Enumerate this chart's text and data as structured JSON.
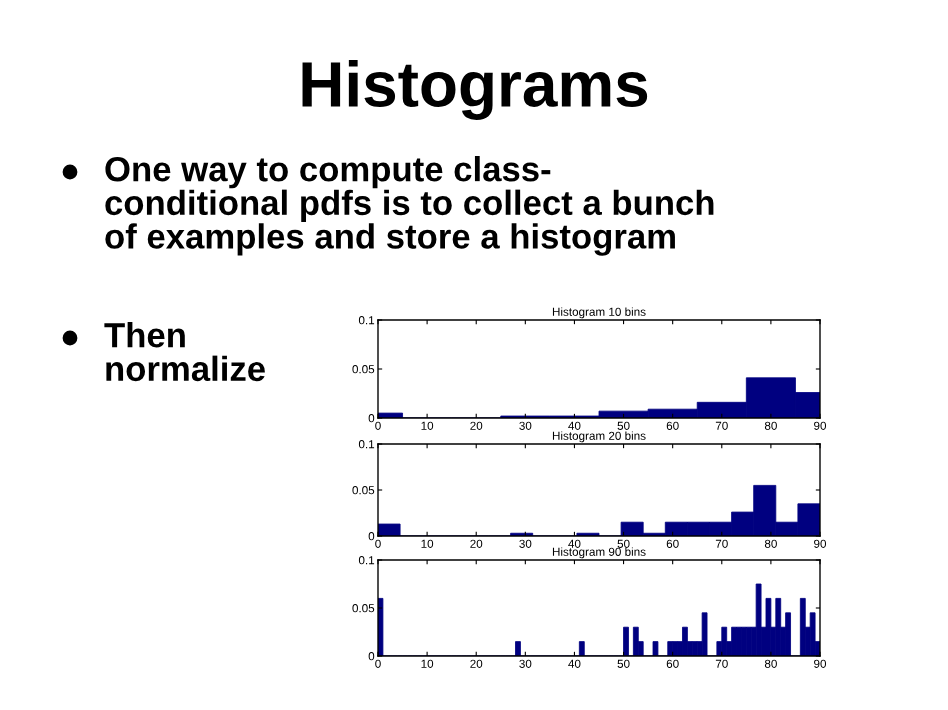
{
  "chart_data": [
    {
      "type": "histogram",
      "title": "Histogram 10 bins",
      "annotations": [
        "Histograms",
        "One way to compute class-\nconditional pdfs is to collect a bunch\nof examples and store a histogram",
        "Then\nnormalize"
      ],
      "bins": [
        0,
        5,
        15,
        25,
        35,
        45,
        55,
        65,
        75,
        85,
        90
      ],
      "values": [
        0.005,
        0,
        0,
        0.002,
        0.002,
        0.007,
        0.009,
        0.016,
        0.041,
        0.026
      ],
      "color": "#000080",
      "xlim": [
        0,
        90
      ],
      "ylim": [
        0,
        0.1
      ],
      "xticks": [
        0,
        10,
        20,
        30,
        40,
        50,
        60,
        70,
        80,
        90
      ],
      "yticks": [
        0,
        0.05,
        0.1
      ]
    },
    {
      "type": "histogram",
      "title": "Histogram 20 bins",
      "bins": [
        0,
        4.5,
        9,
        13.5,
        18,
        22.5,
        27,
        31.5,
        36,
        40.5,
        45,
        49.5,
        54,
        58.5,
        63,
        67.5,
        72,
        76.5,
        81,
        85.5,
        90
      ],
      "values": [
        0.013,
        0,
        0,
        0,
        0,
        0,
        0.003,
        0,
        0,
        0.003,
        0,
        0.015,
        0.003,
        0.015,
        0.015,
        0.015,
        0.026,
        0.055,
        0.015,
        0.035
      ],
      "color": "#000080",
      "xlim": [
        0,
        90
      ],
      "ylim": [
        0,
        0.1
      ],
      "xticks": [
        0,
        10,
        20,
        30,
        40,
        50,
        60,
        70,
        80,
        90
      ],
      "yticks": [
        0,
        0.05,
        0.1
      ]
    },
    {
      "type": "histogram",
      "title": "Histogram 90 bins",
      "bins": [
        0,
        1,
        2,
        3,
        4,
        5,
        6,
        7,
        8,
        9,
        10,
        11,
        12,
        13,
        14,
        15,
        16,
        17,
        18,
        19,
        20,
        21,
        22,
        23,
        24,
        25,
        26,
        27,
        28,
        29,
        30,
        31,
        32,
        33,
        34,
        35,
        36,
        37,
        38,
        39,
        40,
        41,
        42,
        43,
        44,
        45,
        46,
        47,
        48,
        49,
        50,
        51,
        52,
        53,
        54,
        55,
        56,
        57,
        58,
        59,
        60,
        61,
        62,
        63,
        64,
        65,
        66,
        67,
        68,
        69,
        70,
        71,
        72,
        73,
        74,
        75,
        76,
        77,
        78,
        79,
        80,
        81,
        82,
        83,
        84,
        85,
        86,
        87,
        88,
        89,
        90
      ],
      "values": [
        0.06,
        0,
        0,
        0,
        0,
        0,
        0,
        0,
        0,
        0,
        0,
        0,
        0,
        0,
        0,
        0,
        0,
        0,
        0,
        0,
        0,
        0,
        0,
        0,
        0,
        0,
        0,
        0,
        0.015,
        0,
        0,
        0,
        0,
        0,
        0,
        0,
        0,
        0,
        0,
        0,
        0,
        0.015,
        0,
        0,
        0,
        0,
        0,
        0,
        0,
        0,
        0.03,
        0,
        0.03,
        0.015,
        0,
        0,
        0.015,
        0,
        0,
        0.015,
        0.015,
        0.015,
        0.03,
        0.015,
        0.015,
        0.015,
        0.045,
        0,
        0,
        0.015,
        0.03,
        0.015,
        0.03,
        0.03,
        0.03,
        0.03,
        0.03,
        0.075,
        0.03,
        0.06,
        0.03,
        0.06,
        0.03,
        0.045,
        0,
        0,
        0.06,
        0.03,
        0.045,
        0.015
      ],
      "color": "#000080",
      "xlim": [
        0,
        90
      ],
      "ylim": [
        0,
        0.1
      ],
      "xticks": [
        0,
        10,
        20,
        30,
        40,
        50,
        60,
        70,
        80,
        90
      ],
      "yticks": [
        0,
        0.05,
        0.1
      ]
    }
  ]
}
